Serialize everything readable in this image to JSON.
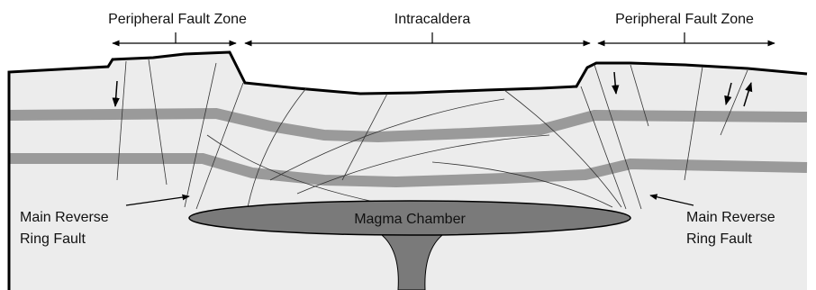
{
  "labels": {
    "left_zone": "Peripheral Fault Zone",
    "center_zone": "Intracaldera",
    "right_zone": "Peripheral Fault Zone",
    "magma": "Magma Chamber",
    "left_fault": [
      "Main Reverse",
      "Ring Fault"
    ],
    "right_fault": [
      "Main Reverse",
      "Ring Fault"
    ]
  }
}
